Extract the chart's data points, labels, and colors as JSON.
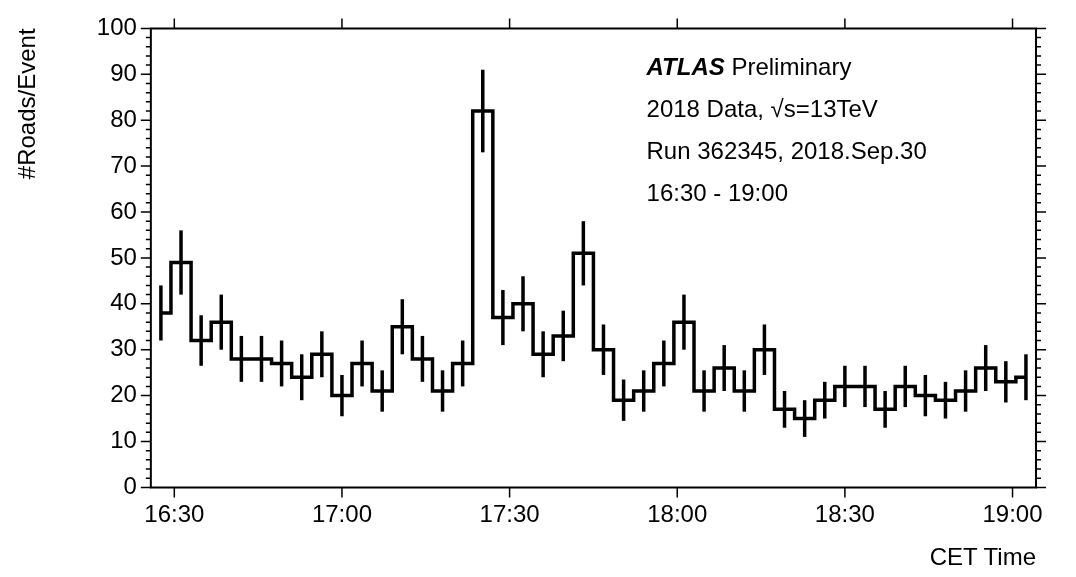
{
  "chart_data": {
    "type": "step",
    "xlabel": "CET Time",
    "ylabel": "#Roads/Event",
    "annotations": [
      "ATLAS Preliminary",
      "2018 Data, √s=13TeV",
      "Run 362345, 2018.Sep.30",
      "16:30 - 19:00"
    ],
    "x": [
      16.46,
      16.52,
      16.58,
      16.64,
      16.7,
      16.76,
      16.82,
      16.88,
      16.94,
      17,
      17.06,
      17.12,
      17.18,
      17.24,
      17.3,
      17.36,
      17.42,
      17.48,
      17.54,
      17.6,
      17.66,
      17.72,
      17.78,
      17.84,
      17.9,
      17.96,
      18.02,
      18.08,
      18.14,
      18.2,
      18.26,
      18.32,
      18.38,
      18.44,
      18.5,
      18.56,
      18.62,
      18.68,
      18.74,
      18.8,
      18.86,
      18.92,
      18.98,
      19.04
    ],
    "values": [
      38,
      49,
      32,
      36,
      28,
      28,
      27,
      24,
      29,
      20,
      27,
      21,
      35,
      28,
      21,
      27,
      82,
      37,
      40,
      29,
      33,
      51,
      30,
      19,
      21,
      27,
      36,
      21,
      26,
      21,
      30,
      17,
      15,
      19,
      22,
      22,
      17,
      22,
      20,
      19,
      21,
      26,
      23,
      24
    ],
    "errors": [
      6,
      7,
      5.5,
      6,
      5,
      5,
      5,
      5,
      5,
      4.5,
      5,
      4.5,
      6,
      5,
      4.5,
      5,
      9,
      6,
      6,
      5,
      5.5,
      7,
      5.5,
      4.5,
      4.5,
      5,
      6,
      4.5,
      5,
      4.5,
      5.5,
      4,
      4,
      4,
      4.5,
      4.5,
      4,
      4.5,
      4.5,
      4,
      4.5,
      5,
      4.5,
      5
    ],
    "color": "#000000",
    "xlim": [
      16.43,
      19.07
    ],
    "xticks": [
      {
        "value": 16.5,
        "label": "16:30"
      },
      {
        "value": 17,
        "label": "17:00"
      },
      {
        "value": 17.5,
        "label": "17:30"
      },
      {
        "value": 18,
        "label": "18:00"
      },
      {
        "value": 18.5,
        "label": "18:30"
      },
      {
        "value": 19,
        "label": "19:00"
      }
    ],
    "ylim": [
      0,
      100
    ],
    "yticks": [
      0,
      10,
      20,
      30,
      40,
      50,
      60,
      70,
      80,
      90,
      100
    ]
  }
}
